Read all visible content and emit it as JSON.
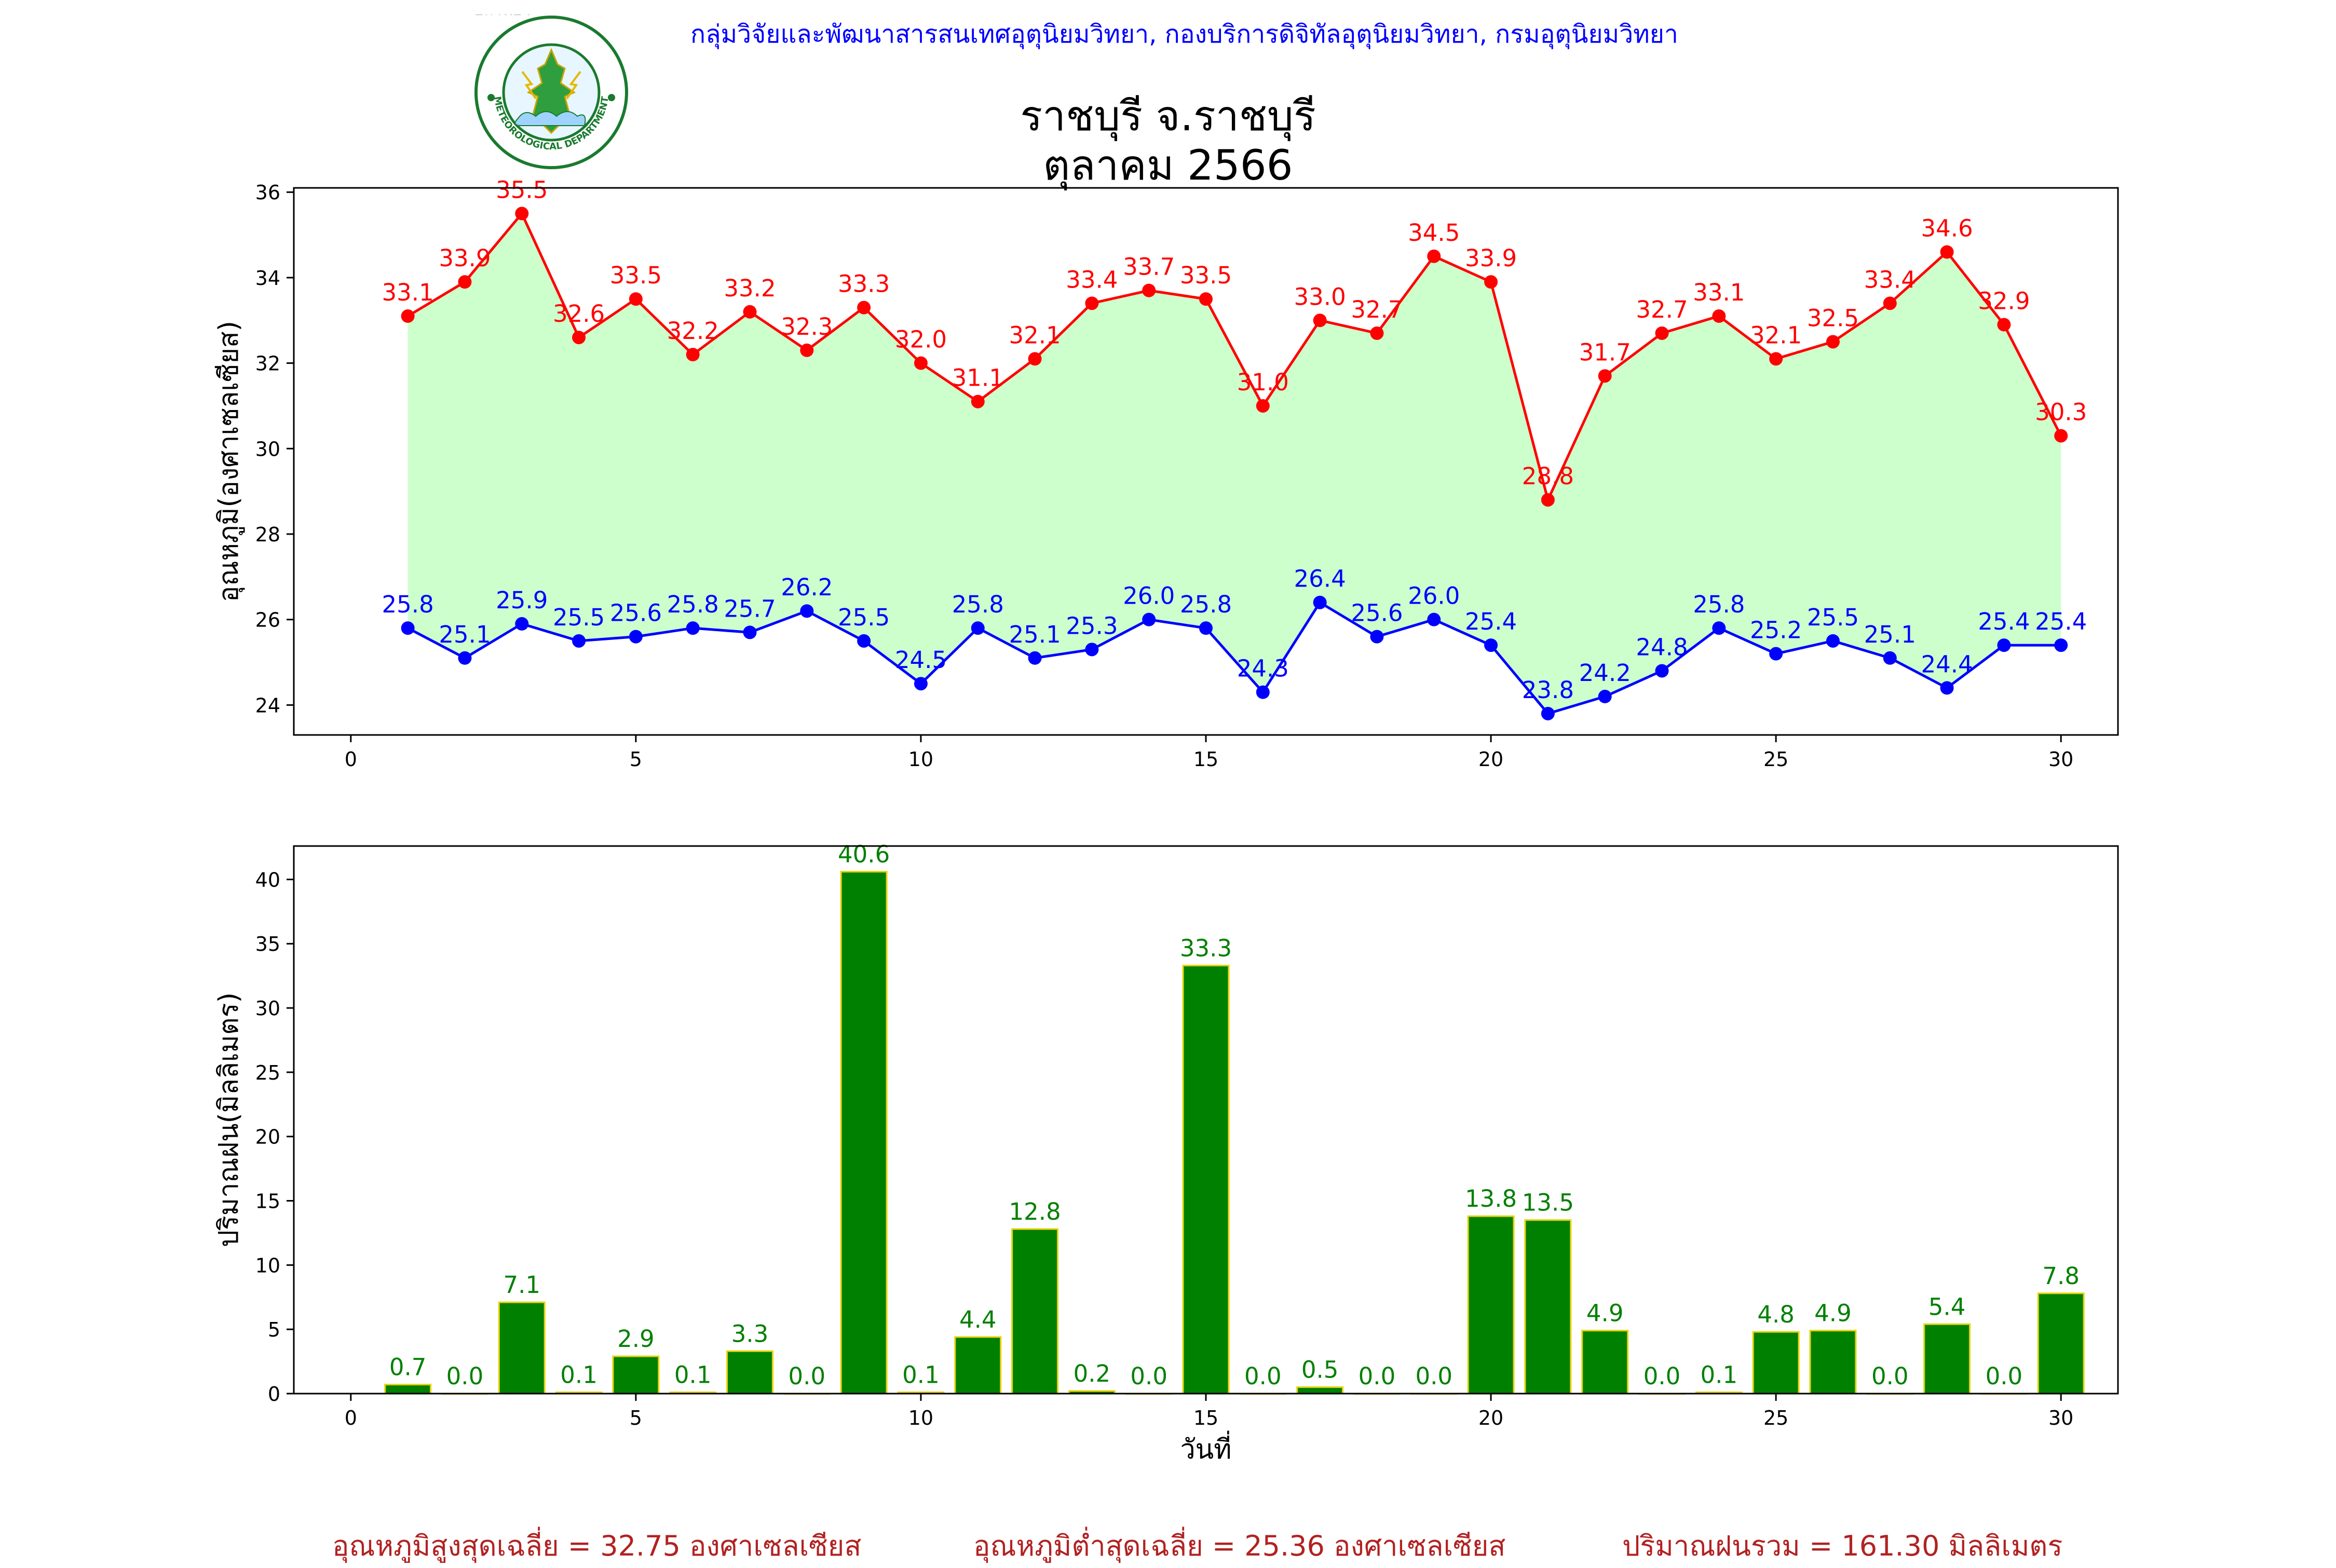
{
  "header": {
    "agency": "กลุ่มวิจัยและพัฒนาสารสนเทศอุตุนิยมวิทยา, กองบริการดิจิทัลอุตุนิยมวิทยา, กรมอุตุนิยมวิทยา",
    "station": "ราชบุรี จ.ราชบุรี",
    "period": "ตุลาคม 2566",
    "logo": {
      "top_text": "กรมอุตุนิยมวิทยา",
      "bottom_text": "METEOROLOGICAL DEPARTMENT",
      "ring_color": "#1a7a2e",
      "figure_color": "#2e9e3e"
    }
  },
  "chart_data": [
    {
      "type": "line",
      "ylabel": "อุณหภูมิ(องศาเซลเซียส)",
      "xlim": [
        -1,
        31
      ],
      "ylim": [
        23.3,
        36.1
      ],
      "xticks": [
        0,
        5,
        10,
        15,
        20,
        25,
        30
      ],
      "yticks": [
        24,
        26,
        28,
        30,
        32,
        34,
        36
      ],
      "fill_between": true,
      "fill_color": "#ccffcc",
      "x": [
        1,
        2,
        3,
        4,
        5,
        6,
        7,
        8,
        9,
        10,
        11,
        12,
        13,
        14,
        15,
        16,
        17,
        18,
        19,
        20,
        21,
        22,
        23,
        24,
        25,
        26,
        27,
        28,
        29,
        30
      ],
      "series": [
        {
          "color": "#ff0000",
          "values": [
            33.1,
            33.9,
            35.5,
            32.6,
            33.5,
            32.2,
            33.2,
            32.3,
            33.3,
            32.0,
            31.1,
            32.1,
            33.4,
            33.7,
            33.5,
            31.0,
            33.0,
            32.7,
            34.5,
            33.9,
            28.8,
            31.7,
            32.7,
            33.1,
            32.1,
            32.5,
            33.4,
            34.6,
            32.9,
            30.3
          ]
        },
        {
          "color": "#0000ff",
          "values": [
            25.8,
            25.1,
            25.9,
            25.5,
            25.6,
            25.8,
            25.7,
            26.2,
            25.5,
            24.5,
            25.8,
            25.1,
            25.3,
            26.0,
            25.8,
            24.3,
            26.4,
            25.6,
            26.0,
            25.4,
            23.8,
            24.2,
            24.8,
            25.8,
            25.2,
            25.5,
            25.1,
            24.4,
            25.4,
            25.4
          ]
        }
      ]
    },
    {
      "type": "bar",
      "xlabel": "วันที่",
      "ylabel": "ปริมาณฝน(มิลลิเมตร)",
      "xlim": [
        -1,
        31
      ],
      "ylim": [
        0,
        42.6
      ],
      "xticks": [
        0,
        5,
        10,
        15,
        20,
        25,
        30
      ],
      "yticks": [
        0,
        5,
        10,
        15,
        20,
        25,
        30,
        35,
        40
      ],
      "bar_color": "#008000",
      "edge_color": "#e6d200",
      "label_color": "#008000",
      "x": [
        1,
        2,
        3,
        4,
        5,
        6,
        7,
        8,
        9,
        10,
        11,
        12,
        13,
        14,
        15,
        16,
        17,
        18,
        19,
        20,
        21,
        22,
        23,
        24,
        25,
        26,
        27,
        28,
        29,
        30
      ],
      "values": [
        0.7,
        0.0,
        7.1,
        0.1,
        2.9,
        0.1,
        3.3,
        0.0,
        40.6,
        0.1,
        4.4,
        12.8,
        0.2,
        0.0,
        33.3,
        0.0,
        0.5,
        0.0,
        0.0,
        13.8,
        13.5,
        4.9,
        0.0,
        0.1,
        4.8,
        4.9,
        0.0,
        5.4,
        0.0,
        7.8
      ]
    }
  ],
  "summary": {
    "max_avg": "อุณหภูมิสูงสุดเฉลี่ย = 32.75 องศาเซลเซียส",
    "min_avg": "อุณหภูมิต่ำสุดเฉลี่ย = 25.36 องศาเซลเซียส",
    "rain_total": "ปริมาณฝนรวม = 161.30 มิลลิเมตร"
  }
}
